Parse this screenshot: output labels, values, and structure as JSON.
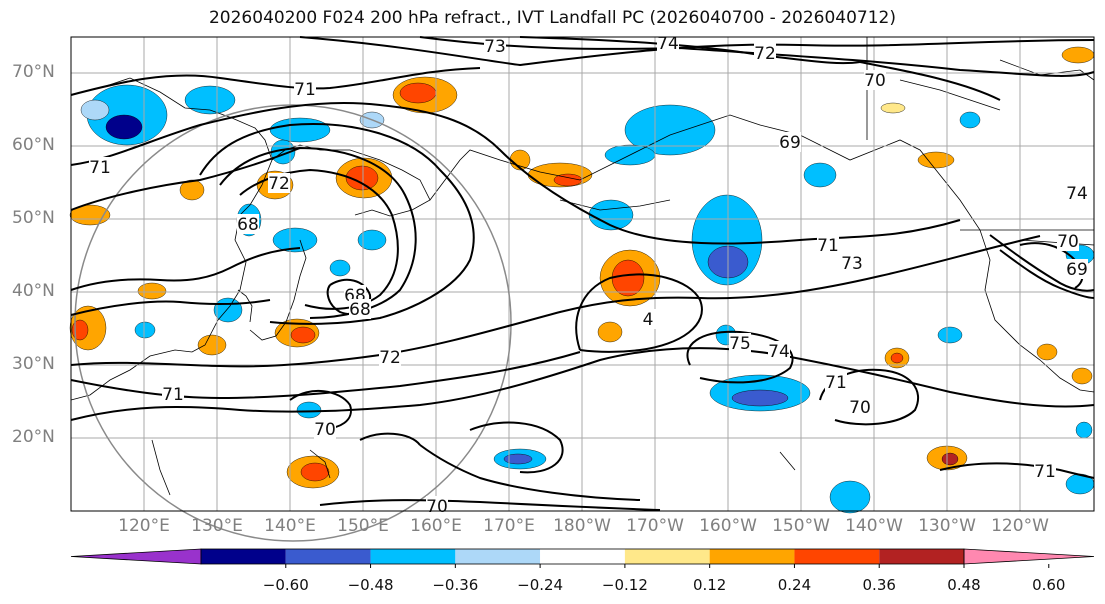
{
  "title": "2026040200 F024 200 hPa refract., IVT Landfall PC (2026040700 - 2026040712)",
  "lat_labels": [
    "70°N",
    "60°N",
    "50°N",
    "40°N",
    "30°N",
    "20°N"
  ],
  "lon_labels": [
    "120°E",
    "130°E",
    "140°E",
    "150°E",
    "160°E",
    "170°E",
    "180°W",
    "170°W",
    "160°W",
    "150°W",
    "140°W",
    "130°W",
    "120°W"
  ],
  "contour_labels": [
    "73",
    "74",
    "72",
    "70",
    "71",
    "69",
    "71",
    "71",
    "73",
    "70",
    "69",
    "68",
    "68",
    "68",
    "72",
    "71",
    "70",
    "70",
    "75",
    "74",
    "71",
    "70",
    "71",
    "74",
    "72",
    "4"
  ],
  "colorbar": {
    "tick_labels": [
      "−0.60",
      "−0.48",
      "−0.36",
      "−0.24",
      "−0.12",
      "0.12",
      "0.24",
      "0.36",
      "0.48",
      "0.60"
    ],
    "colors": [
      "#9932cc",
      "#00008b",
      "#3a5bcf",
      "#00bfff",
      "#add8f8",
      "#ffffff",
      "#ffe88a",
      "#ffa500",
      "#ff4500",
      "#b22222",
      "#ff88b0"
    ]
  },
  "shading_colors": {
    "neg1": "#add8f8",
    "neg2": "#00bfff",
    "neg3": "#3a5bcf",
    "neg4": "#00008b",
    "pos1": "#ffe88a",
    "pos2": "#ffa500",
    "pos3": "#ff4500",
    "pos4": "#b22222"
  }
}
